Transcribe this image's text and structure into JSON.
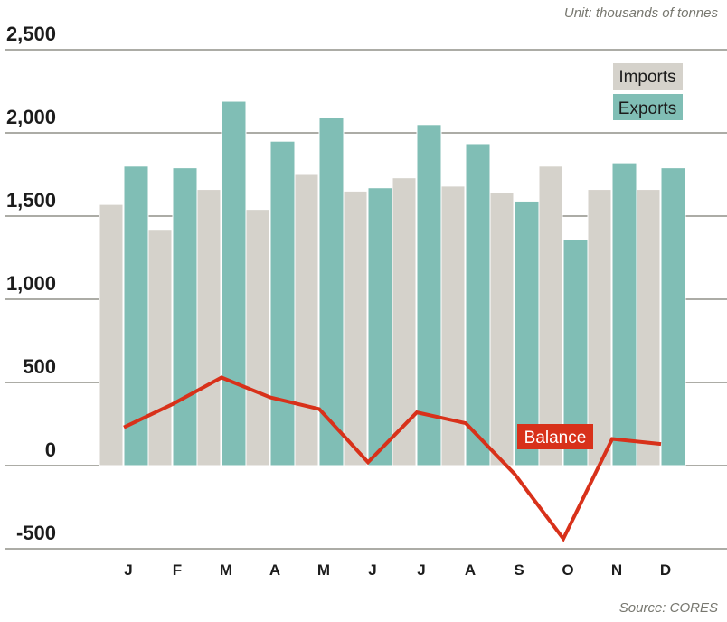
{
  "unit_note": "Unit: thousands of tonnes",
  "source_note": "Source: CORES",
  "colors": {
    "imports": "#d5d2cb",
    "exports": "#80beb5",
    "balance": "#d8311a",
    "grid": "#7a7a72"
  },
  "chart_data": {
    "type": "bar",
    "categories": [
      "J",
      "F",
      "M",
      "A",
      "M",
      "J",
      "J",
      "A",
      "S",
      "O",
      "N",
      "D"
    ],
    "series": [
      {
        "name": "Imports",
        "type": "bar",
        "values": [
          1570,
          1420,
          1660,
          1540,
          1750,
          1650,
          1730,
          1680,
          1640,
          1800,
          1660,
          1660
        ]
      },
      {
        "name": "Exports",
        "type": "bar",
        "values": [
          1800,
          1790,
          2190,
          1950,
          2090,
          1670,
          2050,
          1935,
          1590,
          1360,
          1820,
          1790
        ]
      },
      {
        "name": "Balance",
        "type": "line",
        "values": [
          230,
          370,
          530,
          410,
          340,
          20,
          320,
          255,
          -50,
          -440,
          160,
          130
        ]
      }
    ],
    "yticks": [
      "2,500",
      "2,000",
      "1,500",
      "1,000",
      "500",
      "0",
      "-500"
    ],
    "ytick_values": [
      2500,
      2000,
      1500,
      1000,
      500,
      0,
      -500
    ],
    "ylim": [
      -500,
      2500
    ],
    "grid": true,
    "legend": "top-right"
  }
}
